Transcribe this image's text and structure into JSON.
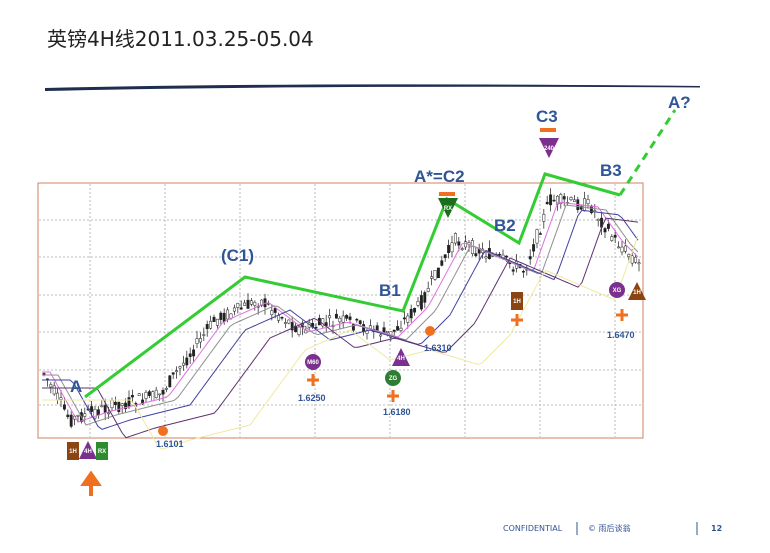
{
  "header": {
    "title": "英镑4H线2011.03.25-05.04"
  },
  "wave_labels": [
    "A",
    "(C1)",
    "B1",
    "A*=C2",
    "B2",
    "C3",
    "B3",
    "A?"
  ],
  "price_labels": [
    "1.6101",
    "1.6250",
    "1.6180",
    "1.6310",
    "1.6470"
  ],
  "markers": [
    "1H",
    "4H",
    "RX",
    "M60",
    "ZG",
    "4H",
    "RX",
    "1H",
    "240",
    "XG",
    "1H"
  ],
  "footer": {
    "confidential": "CONFIDENTIAL",
    "source": "© 雨后谈翁",
    "page": "12"
  }
}
